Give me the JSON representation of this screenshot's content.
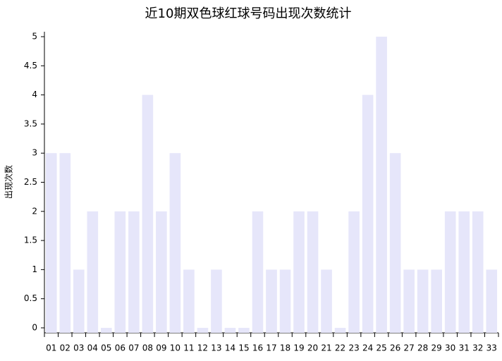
{
  "chart_data": {
    "type": "bar",
    "title": "近10期双色球红球号码出现次数统计",
    "y_label": "出现次数",
    "categories": [
      "01",
      "02",
      "03",
      "04",
      "05",
      "06",
      "07",
      "08",
      "09",
      "10",
      "11",
      "12",
      "13",
      "14",
      "15",
      "16",
      "17",
      "18",
      "19",
      "20",
      "21",
      "22",
      "23",
      "24",
      "25",
      "26",
      "27",
      "28",
      "29",
      "30",
      "31",
      "32",
      "33"
    ],
    "values": [
      3,
      3,
      1,
      2,
      0,
      2,
      2,
      4,
      2,
      3,
      1,
      0,
      1,
      0,
      0,
      2,
      1,
      1,
      2,
      2,
      1,
      0,
      2,
      4,
      5,
      3,
      1,
      1,
      1,
      2,
      2,
      2,
      1
    ],
    "color": "#e6e6fa",
    "ylim": [
      -0.085,
      5.085
    ],
    "yticks": [
      0,
      0.5,
      1,
      1.5,
      2,
      2.5,
      3,
      3.5,
      4,
      4.5,
      5
    ]
  }
}
